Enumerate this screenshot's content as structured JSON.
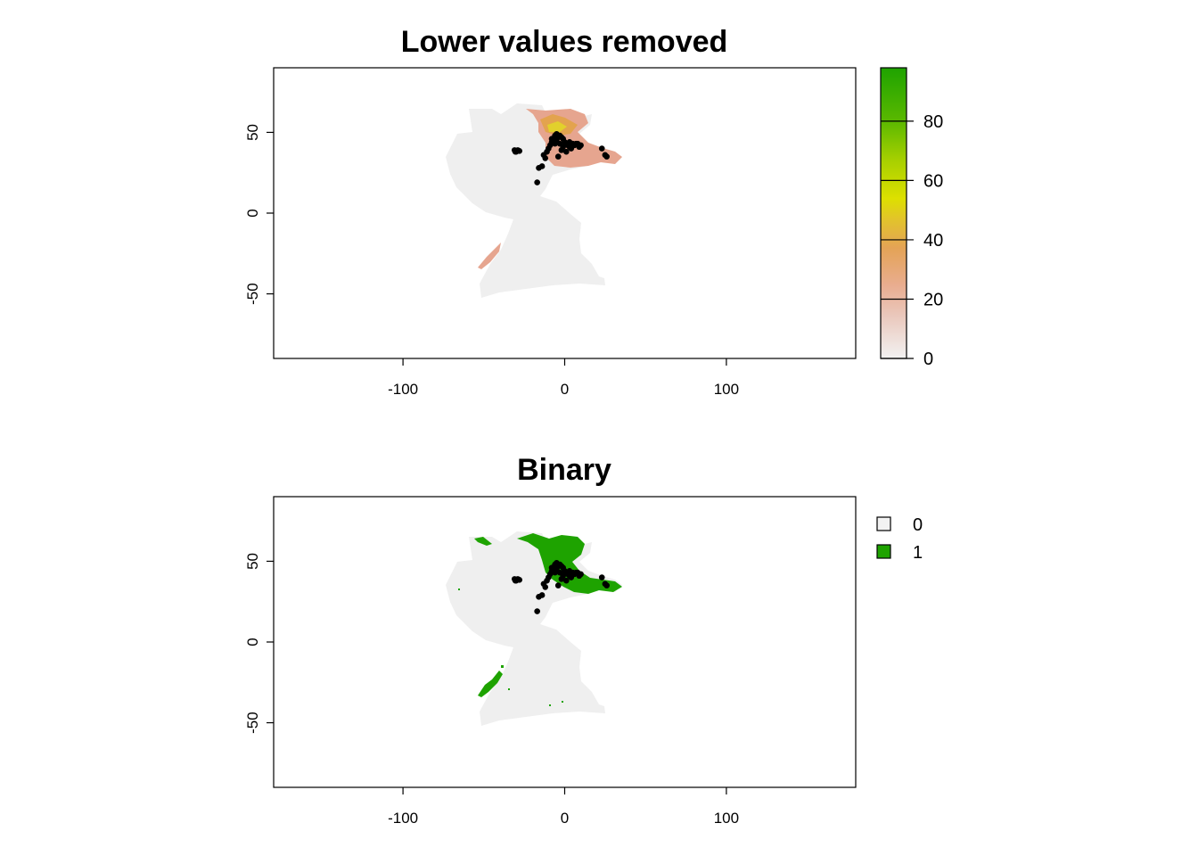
{
  "maps": [
    {
      "title": "Lower values removed",
      "x_ticks": [
        -100,
        0,
        100
      ],
      "y_ticks": [
        -50,
        0,
        50
      ],
      "xlim": [
        -180,
        180
      ],
      "ylim": [
        -90,
        90
      ],
      "legend": {
        "type": "continuous",
        "min": 0,
        "max": 98,
        "ticks": [
          0,
          20,
          40,
          60,
          80
        ],
        "colors": [
          "#f2f2f2",
          "#eab8a4",
          "#e5a158",
          "#e2cb2a",
          "#dde000",
          "#a8d000",
          "#59b800",
          "#1ea300"
        ]
      }
    },
    {
      "title": "Binary",
      "x_ticks": [
        -100,
        0,
        100
      ],
      "y_ticks": [
        -50,
        0,
        50
      ],
      "xlim": [
        -180,
        180
      ],
      "ylim": [
        -90,
        90
      ],
      "legend": {
        "type": "categorical",
        "items": [
          {
            "label": "0",
            "color": "#f2f2f2"
          },
          {
            "label": "1",
            "color": "#1ea300"
          }
        ]
      }
    }
  ],
  "colors": {
    "land": "#efefef",
    "salmon": "#e6a58f",
    "orange": "#e3a34e",
    "yellow": "#e2d02c",
    "green": "#1ea300",
    "points": "#000000"
  },
  "occurrences": [
    [
      -31,
      39
    ],
    [
      -30,
      38
    ],
    [
      -29,
      39
    ],
    [
      -28,
      38.5
    ],
    [
      -30.5,
      38
    ],
    [
      -17,
      19
    ],
    [
      -16,
      28
    ],
    [
      -14,
      29
    ],
    [
      -13,
      36
    ],
    [
      -12,
      34
    ],
    [
      -11,
      38
    ],
    [
      -10,
      40
    ],
    [
      -9,
      42
    ],
    [
      -8,
      44
    ],
    [
      -7,
      46
    ],
    [
      -6,
      48
    ],
    [
      -5,
      49
    ],
    [
      -4,
      47
    ],
    [
      -3,
      43
    ],
    [
      -2,
      39
    ],
    [
      -1,
      41
    ],
    [
      0,
      44
    ],
    [
      1,
      38
    ],
    [
      2,
      42
    ],
    [
      3,
      41
    ],
    [
      4,
      40
    ],
    [
      5,
      43
    ],
    [
      6,
      42
    ],
    [
      7,
      43
    ],
    [
      8,
      43
    ],
    [
      9,
      41
    ],
    [
      10,
      42
    ],
    [
      -5,
      45
    ],
    [
      -3,
      48
    ],
    [
      -2,
      47
    ],
    [
      -8,
      46
    ],
    [
      -6,
      43
    ],
    [
      23,
      40
    ],
    [
      25,
      36
    ],
    [
      26,
      35
    ],
    [
      -4,
      35
    ],
    [
      -1,
      46
    ],
    [
      3,
      44
    ]
  ]
}
